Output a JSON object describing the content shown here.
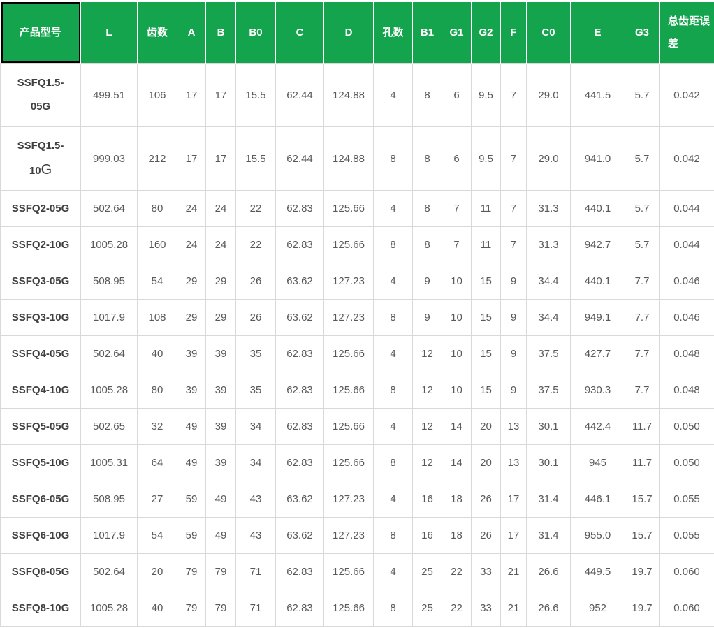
{
  "colors": {
    "header_bg": "#14A44D",
    "header_text": "#FFFFFF",
    "grid_line": "#D9D9D9",
    "body_text": "#595959",
    "model_text": "#3F3F3F",
    "selection_border": "#000000"
  },
  "table": {
    "columns": [
      {
        "key": "model",
        "label": "产品型号"
      },
      {
        "key": "L",
        "label": "L"
      },
      {
        "key": "teeth-count",
        "label": "齿数"
      },
      {
        "key": "A",
        "label": "A"
      },
      {
        "key": "B",
        "label": "B"
      },
      {
        "key": "B0",
        "label": "B0"
      },
      {
        "key": "C",
        "label": "C"
      },
      {
        "key": "D",
        "label": "D"
      },
      {
        "key": "hole-count",
        "label": "孔数"
      },
      {
        "key": "B1",
        "label": "B1"
      },
      {
        "key": "G1",
        "label": "G1"
      },
      {
        "key": "G2",
        "label": "G2"
      },
      {
        "key": "F",
        "label": "F"
      },
      {
        "key": "C0",
        "label": "C0"
      },
      {
        "key": "E",
        "label": "E"
      },
      {
        "key": "G3",
        "label": "G3"
      },
      {
        "key": "total-pitch-error",
        "label": "总齿距误差"
      }
    ],
    "rows": [
      {
        "model": "SSFQ1.5-\n05G",
        "values": [
          "499.51",
          "106",
          "17",
          "17",
          "15.5",
          "62.44",
          "124.88",
          "4",
          "8",
          "6",
          "9.5",
          "7",
          "29.0",
          "441.5",
          "5.7",
          "0.042"
        ]
      },
      {
        "model": "SSFQ1.5-\n10G",
        "model_light_g": true,
        "values": [
          "999.03",
          "212",
          "17",
          "17",
          "15.5",
          "62.44",
          "124.88",
          "8",
          "8",
          "6",
          "9.5",
          "7",
          "29.0",
          "941.0",
          "5.7",
          "0.042"
        ]
      },
      {
        "model": "SSFQ2-05G",
        "values": [
          "502.64",
          "80",
          "24",
          "24",
          "22",
          "62.83",
          "125.66",
          "4",
          "8",
          "7",
          "11",
          "7",
          "31.3",
          "440.1",
          "5.7",
          "0.044"
        ]
      },
      {
        "model": "SSFQ2-10G",
        "values": [
          "1005.28",
          "160",
          "24",
          "24",
          "22",
          "62.83",
          "125.66",
          "8",
          "8",
          "7",
          "11",
          "7",
          "31.3",
          "942.7",
          "5.7",
          "0.044"
        ]
      },
      {
        "model": "SSFQ3-05G",
        "values": [
          "508.95",
          "54",
          "29",
          "29",
          "26",
          "63.62",
          "127.23",
          "4",
          "9",
          "10",
          "15",
          "9",
          "34.4",
          "440.1",
          "7.7",
          "0.046"
        ]
      },
      {
        "model": "SSFQ3-10G",
        "values": [
          "1017.9",
          "108",
          "29",
          "29",
          "26",
          "63.62",
          "127.23",
          "8",
          "9",
          "10",
          "15",
          "9",
          "34.4",
          "949.1",
          "7.7",
          "0.046"
        ]
      },
      {
        "model": "SSFQ4-05G",
        "values": [
          "502.64",
          "40",
          "39",
          "39",
          "35",
          "62.83",
          "125.66",
          "4",
          "12",
          "10",
          "15",
          "9",
          "37.5",
          "427.7",
          "7.7",
          "0.048"
        ]
      },
      {
        "model": "SSFQ4-10G",
        "values": [
          "1005.28",
          "80",
          "39",
          "39",
          "35",
          "62.83",
          "125.66",
          "8",
          "12",
          "10",
          "15",
          "9",
          "37.5",
          "930.3",
          "7.7",
          "0.048"
        ]
      },
      {
        "model": "SSFQ5-05G",
        "values": [
          "502.65",
          "32",
          "49",
          "39",
          "34",
          "62.83",
          "125.66",
          "4",
          "12",
          "14",
          "20",
          "13",
          "30.1",
          "442.4",
          "11.7",
          "0.050"
        ]
      },
      {
        "model": "SSFQ5-10G",
        "values": [
          "1005.31",
          "64",
          "49",
          "39",
          "34",
          "62.83",
          "125.66",
          "8",
          "12",
          "14",
          "20",
          "13",
          "30.1",
          "945",
          "11.7",
          "0.050"
        ]
      },
      {
        "model": "SSFQ6-05G",
        "values": [
          "508.95",
          "27",
          "59",
          "49",
          "43",
          "63.62",
          "127.23",
          "4",
          "16",
          "18",
          "26",
          "17",
          "31.4",
          "446.1",
          "15.7",
          "0.055"
        ]
      },
      {
        "model": "SSFQ6-10G",
        "values": [
          "1017.9",
          "54",
          "59",
          "49",
          "43",
          "63.62",
          "127.23",
          "8",
          "16",
          "18",
          "26",
          "17",
          "31.4",
          "955.0",
          "15.7",
          "0.055"
        ]
      },
      {
        "model": "SSFQ8-05G",
        "values": [
          "502.64",
          "20",
          "79",
          "79",
          "71",
          "62.83",
          "125.66",
          "4",
          "25",
          "22",
          "33",
          "21",
          "26.6",
          "449.5",
          "19.7",
          "0.060"
        ]
      },
      {
        "model": "SSFQ8-10G",
        "values": [
          "1005.28",
          "40",
          "79",
          "79",
          "71",
          "62.83",
          "125.66",
          "8",
          "25",
          "22",
          "33",
          "21",
          "26.6",
          "952",
          "19.7",
          "0.060"
        ]
      }
    ]
  }
}
